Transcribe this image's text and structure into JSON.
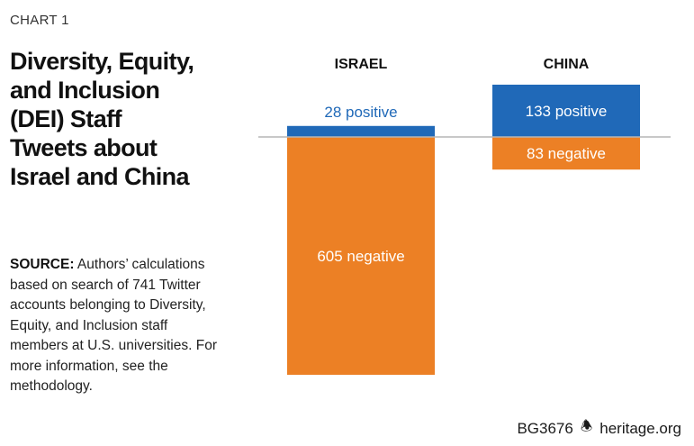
{
  "header": {
    "chart_number": "CHART 1",
    "title_lines": [
      "Diversity, Equity,",
      "and Inclusion",
      "(DEI) Staff",
      "Tweets about",
      "Israel and China"
    ]
  },
  "source": {
    "label": "SOURCE:",
    "lines": [
      " Authors’ calculations",
      "based on search of 741 Twitter",
      "accounts belonging to Diversity,",
      "Equity, and Inclusion staff",
      "members at U.S. universities. For",
      "more information, see the",
      "methodology."
    ]
  },
  "footer": {
    "code": "BG3676",
    "bell_icon": "🕭",
    "site": "heritage.org"
  },
  "colors": {
    "positive": "#2069b8",
    "negative": "#ec8025",
    "positive_text": "#2069b8",
    "label_on_bar": "#ffffff",
    "baseline": "#b5b5b5"
  },
  "chart_data": {
    "type": "bar",
    "title": "Diversity, Equity, and Inclusion (DEI) Staff Tweets about Israel and China",
    "categories": [
      "ISRAEL",
      "CHINA"
    ],
    "series": [
      {
        "name": "positive",
        "values": [
          28,
          133
        ]
      },
      {
        "name": "negative",
        "values": [
          605,
          83
        ]
      }
    ],
    "data_labels": {
      "positive": [
        "28 positive",
        "133 positive"
      ],
      "negative": [
        "605 negative",
        "83 negative"
      ]
    },
    "layout": "diverging",
    "xlabel": "",
    "ylabel": ""
  }
}
